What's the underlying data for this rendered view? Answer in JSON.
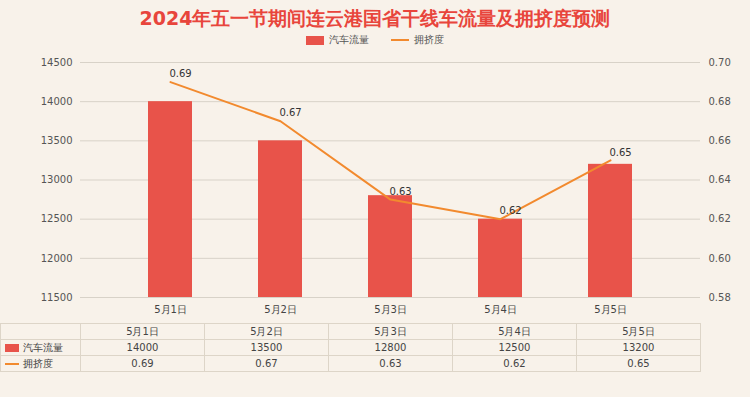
{
  "chart_data": {
    "type": "bar",
    "title": "2024年五一节期间连云港国省干线车流量及拥挤度预测",
    "categories": [
      "5月1日",
      "5月2日",
      "5月3日",
      "5月4日",
      "5月5日"
    ],
    "series": [
      {
        "name": "汽车流量",
        "type": "bar",
        "color": "#e8534a",
        "values": [
          14000,
          13500,
          12800,
          12500,
          13200
        ]
      },
      {
        "name": "拥挤度",
        "type": "line",
        "color": "#f28a2e",
        "axis": "y2",
        "values": [
          0.69,
          0.67,
          0.63,
          0.62,
          0.65
        ],
        "data_labels": true
      }
    ],
    "ylim": [
      11500,
      14500
    ],
    "yticks": [
      11500,
      12000,
      12500,
      13000,
      13500,
      14000,
      14500
    ],
    "y2lim": [
      0.58,
      0.7
    ],
    "y2ticks": [
      0.58,
      {
        "value": 0.6,
        "label": "0.60"
      },
      0.62,
      0.64,
      0.66,
      0.68,
      {
        "value": 0.7,
        "label": "0.70"
      }
    ],
    "grid": true,
    "legend": "top"
  }
}
